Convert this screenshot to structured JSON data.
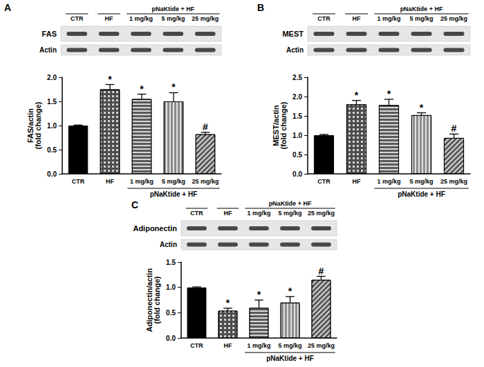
{
  "chart_data": [
    {
      "type": "bar",
      "panel": "A",
      "blot": {
        "bands": [
          "FAS",
          "Actin"
        ],
        "lanes": [
          "CTR",
          "HF",
          "1 mg/kg",
          "5 mg/kg",
          "25 mg/kg"
        ],
        "lane_groups": [
          {
            "label": "pNaKtide + HF",
            "lanes": [
              "1 mg/kg",
              "5 mg/kg",
              "25 mg/kg"
            ]
          }
        ]
      },
      "categories": [
        "CTR",
        "HF",
        "1 mg/kg",
        "5 mg/kg",
        "25 mg/kg"
      ],
      "values": [
        1.0,
        1.75,
        1.55,
        1.5,
        0.82
      ],
      "errors": [
        0.01,
        0.1,
        0.1,
        0.18,
        0.04
      ],
      "annotations": [
        null,
        "*",
        "*",
        "*",
        "#"
      ],
      "colors": [
        "#000000",
        "#4d4d4d",
        "#5a5a5a",
        "#8c8c8c",
        "#595959"
      ],
      "y_label": "FAS/actin\n(fold change)",
      "ylim": [
        0,
        2
      ],
      "yticks": [
        {
          "value": 0,
          "label": "0.0"
        },
        0.5,
        {
          "value": 1,
          "label": "1.0"
        },
        1.5,
        {
          "value": 2,
          "label": "2.0"
        }
      ],
      "x_groups": [
        {
          "label": "pNaKtide + HF",
          "categories": [
            "1 mg/kg",
            "5 mg/kg",
            "25 mg/kg"
          ]
        }
      ],
      "grid": false
    },
    {
      "type": "bar",
      "panel": "B",
      "blot": {
        "bands": [
          "MEST",
          "Actin"
        ],
        "lanes": [
          "CTR",
          "HF",
          "1 mg/kg",
          "5 mg/kg",
          "25 mg/kg"
        ],
        "lane_groups": [
          {
            "label": "pNaKtide + HF",
            "lanes": [
              "1 mg/kg",
              "5 mg/kg",
              "25 mg/kg"
            ]
          }
        ]
      },
      "categories": [
        "CTR",
        "HF",
        "1 mg/kg",
        "5 mg/kg",
        "25 mg/kg"
      ],
      "values": [
        1.0,
        1.8,
        1.78,
        1.52,
        0.93
      ],
      "errors": [
        0.02,
        0.1,
        0.15,
        0.06,
        0.1
      ],
      "annotations": [
        null,
        "*",
        "*",
        "*",
        "#"
      ],
      "colors": [
        "#000000",
        "#4d4d4d",
        "#5a5a5a",
        "#8c8c8c",
        "#595959"
      ],
      "y_label": "MEST/actin\n(fold change)",
      "ylim": [
        0,
        2.5
      ],
      "yticks": [
        {
          "value": 0,
          "label": "0.0"
        },
        0.5,
        {
          "value": 1,
          "label": "1.0"
        },
        1.5,
        {
          "value": 2,
          "label": "2.0"
        },
        2.5
      ],
      "x_groups": [
        {
          "label": "pNaKtide + HF",
          "categories": [
            "1 mg/kg",
            "5 mg/kg",
            "25 mg/kg"
          ]
        }
      ],
      "grid": false
    },
    {
      "type": "bar",
      "panel": "C",
      "blot": {
        "bands": [
          "Adiponectin",
          "Actin"
        ],
        "lanes": [
          "CTR",
          "HF",
          "1 mg/kg",
          "5 mg/kg",
          "25 mg/kg"
        ],
        "lane_groups": [
          {
            "label": "pNaKtide + HF",
            "lanes": [
              "1 mg/kg",
              "5 mg/kg",
              "25 mg/kg"
            ]
          }
        ]
      },
      "categories": [
        "CTR",
        "HF",
        "1 mg/kg",
        "5 mg/kg",
        "25 mg/kg"
      ],
      "values": [
        1.0,
        0.54,
        0.6,
        0.7,
        1.15
      ],
      "errors": [
        0.01,
        0.05,
        0.15,
        0.12,
        0.07
      ],
      "annotations": [
        null,
        "*",
        "*",
        "*",
        "#"
      ],
      "colors": [
        "#000000",
        "#4d4d4d",
        "#5a5a5a",
        "#8c8c8c",
        "#595959"
      ],
      "y_label": "Adiponectin/actin\n(fold change)",
      "ylim": [
        0,
        1.5
      ],
      "yticks": [
        {
          "value": 0,
          "label": "0.0"
        },
        0.5,
        {
          "value": 1,
          "label": "1.0"
        },
        1.5
      ],
      "x_groups": [
        {
          "label": "pNaKtide + HF",
          "categories": [
            "1 mg/kg",
            "5 mg/kg",
            "25 mg/kg"
          ]
        }
      ],
      "grid": false
    }
  ]
}
